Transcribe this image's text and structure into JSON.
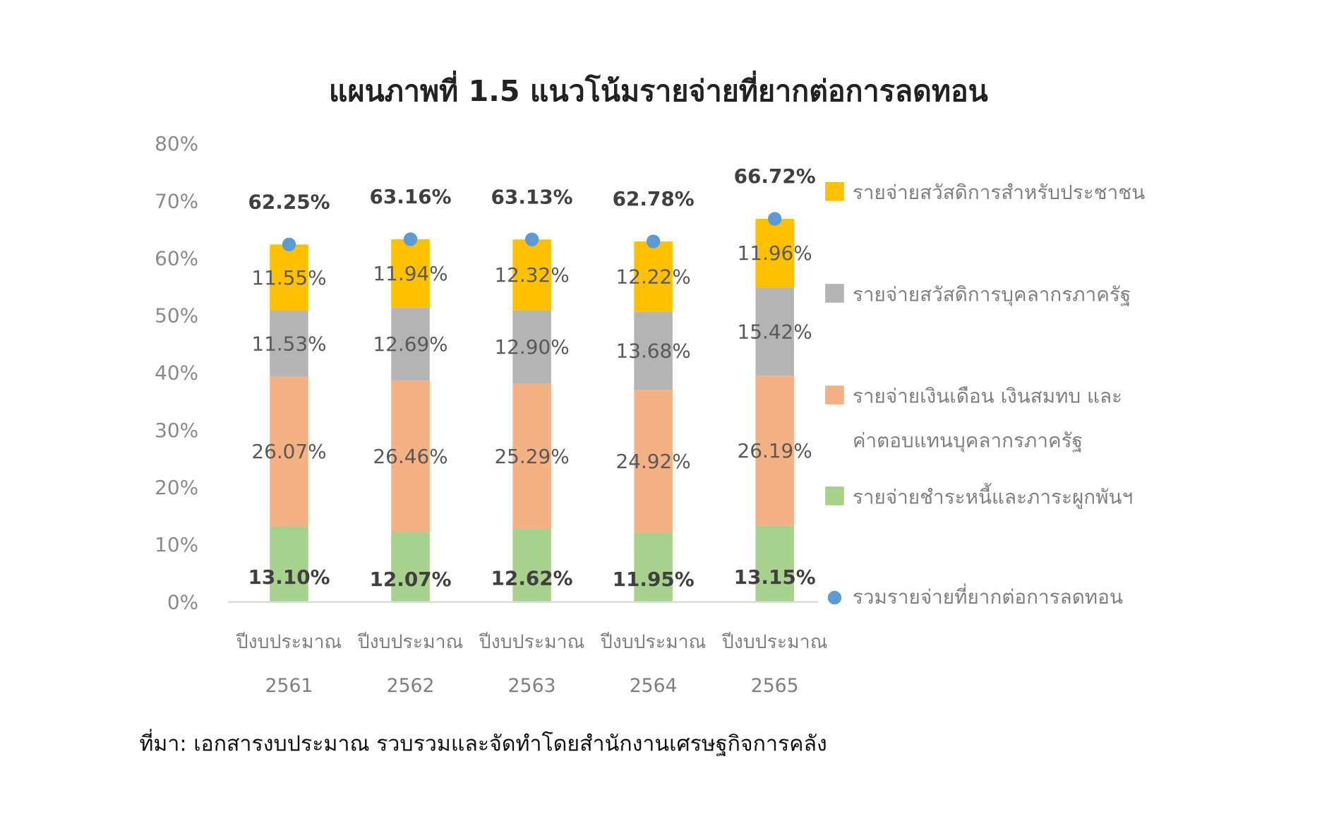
{
  "chart_data": {
    "type": "bar",
    "stacked": true,
    "title": "แผนภาพที่ 1.5  แนวโน้มรายจ่ายที่ยากต่อการลดทอน",
    "categories": [
      [
        "ปีงบประมาณ",
        "2561"
      ],
      [
        "ปีงบประมาณ",
        "2562"
      ],
      [
        "ปีงบประมาณ",
        "2563"
      ],
      [
        "ปีงบประมาณ",
        "2564"
      ],
      [
        "ปีงบประมาณ",
        "2565"
      ]
    ],
    "ylim": [
      0,
      80
    ],
    "yticks": [
      "0%",
      "10%",
      "20%",
      "30%",
      "40%",
      "50%",
      "60%",
      "70%",
      "80%"
    ],
    "series": [
      {
        "name": "รายจ่ายชำระหนี้และภาระผูกพันฯ",
        "color": "#A9D18E",
        "values": [
          13.1,
          12.07,
          12.62,
          11.95,
          13.15
        ],
        "labels": [
          "13.10%",
          "12.07%",
          "12.62%",
          "11.95%",
          "13.15%"
        ],
        "bold": true
      },
      {
        "name": "รายจ่ายเงินเดือน เงินสมทบ และ ค่าตอบแทนบุคลากรภาครัฐ",
        "name_lines": [
          "รายจ่ายเงินเดือน เงินสมทบ และ",
          "ค่าตอบแทนบุคลากรภาครัฐ"
        ],
        "color": "#F4B183",
        "values": [
          26.07,
          26.46,
          25.29,
          24.92,
          26.19
        ],
        "labels": [
          "26.07%",
          "26.46%",
          "25.29%",
          "24.92%",
          "26.19%"
        ]
      },
      {
        "name": "รายจ่ายสวัสดิการบุคลากรภาครัฐ",
        "color": "#B4B4B4",
        "values": [
          11.53,
          12.69,
          12.9,
          13.68,
          15.42
        ],
        "labels": [
          "11.53%",
          "12.69%",
          "12.90%",
          "13.68%",
          "15.42%"
        ]
      },
      {
        "name": "รายจ่ายสวัสดิการสำหรับประชาชน",
        "color": "#FFC000",
        "values": [
          11.55,
          11.94,
          12.32,
          12.22,
          11.96
        ],
        "labels": [
          "11.55%",
          "11.94%",
          "12.32%",
          "12.22%",
          "11.96%"
        ]
      }
    ],
    "total": {
      "name": "รวมรายจ่ายที่ยากต่อการลดทอน",
      "color": "#5B9BD5",
      "values": [
        62.25,
        63.16,
        63.13,
        62.78,
        66.72
      ],
      "labels": [
        "62.25%",
        "63.16%",
        "63.13%",
        "62.78%",
        "66.72%"
      ]
    },
    "legend_position": "right",
    "grid": false
  },
  "source_note": "ที่มา: เอกสารงบประมาณ รวบรวมและจัดทำโดยสำนักงานเศรษฐกิจการคลัง"
}
